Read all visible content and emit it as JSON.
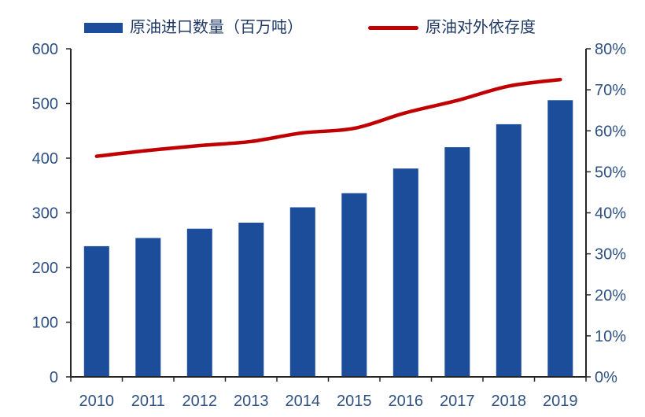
{
  "chart_data": {
    "type": "combo",
    "subtypes": [
      "bar",
      "line"
    ],
    "title": "",
    "categories": [
      "2010",
      "2011",
      "2012",
      "2013",
      "2014",
      "2015",
      "2016",
      "2017",
      "2018",
      "2019"
    ],
    "series": [
      {
        "name": "原油进口数量（百万吨）",
        "type": "bar",
        "axis": "left",
        "color": "#1B4D9B",
        "values": [
          239,
          254,
          271,
          282,
          310,
          336,
          381,
          420,
          462,
          506
        ]
      },
      {
        "name": "原油对外依存度",
        "type": "line",
        "axis": "right",
        "color": "#C00000",
        "values": [
          53.8,
          55.2,
          56.4,
          57.4,
          59.5,
          60.6,
          64.4,
          67.4,
          70.9,
          72.5
        ]
      }
    ],
    "left_axis": {
      "min": 0,
      "max": 600,
      "step": 100,
      "tick_labels": [
        "0",
        "100",
        "200",
        "300",
        "400",
        "500",
        "600"
      ]
    },
    "right_axis": {
      "min": 0,
      "max": 80,
      "step": 10,
      "tick_labels": [
        "0%",
        "10%",
        "20%",
        "30%",
        "40%",
        "50%",
        "60%",
        "70%",
        "80%"
      ]
    },
    "legend_position": "top",
    "grid": false,
    "colors": {
      "background": "#FFFFFF",
      "axis_text": "#2E5182",
      "legend_text": "#1F3864",
      "axis_line": "#262626"
    }
  }
}
